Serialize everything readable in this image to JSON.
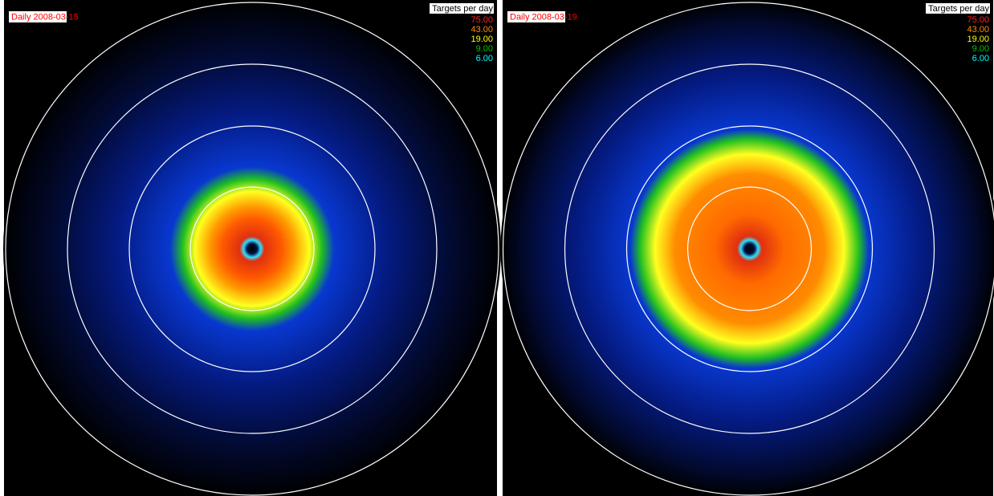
{
  "panels": [
    {
      "title": "Daily 2008-03-15",
      "legend": {
        "title": "Targets per day",
        "items": [
          {
            "label": "75.00",
            "color": "#ff2020"
          },
          {
            "label": "43.00",
            "color": "#ff8c00"
          },
          {
            "label": "19.00",
            "color": "#ffff00"
          },
          {
            "label": "9.00",
            "color": "#00c000"
          },
          {
            "label": "6.00",
            "color": "#00ffff"
          }
        ]
      }
    },
    {
      "title": "Daily 2008-03-19",
      "legend": {
        "title": "Targets per day",
        "items": [
          {
            "label": "75.00",
            "color": "#ff2020"
          },
          {
            "label": "43.00",
            "color": "#ff8c00"
          },
          {
            "label": "19.00",
            "color": "#ffff00"
          },
          {
            "label": "9.00",
            "color": "#00c000"
          },
          {
            "label": "6.00",
            "color": "#00ffff"
          }
        ]
      }
    }
  ]
}
